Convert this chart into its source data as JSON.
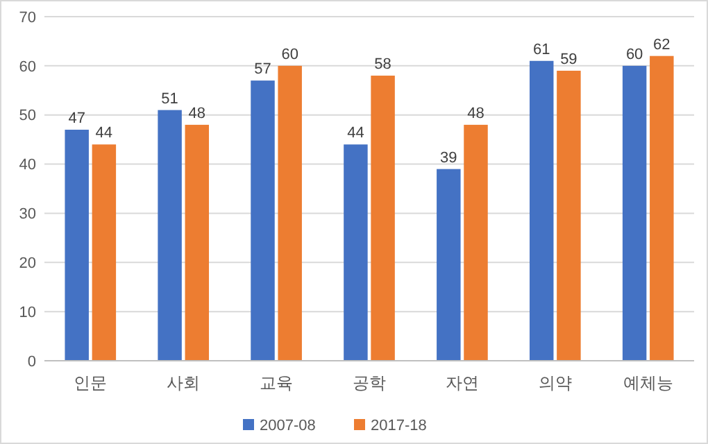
{
  "chart_data": {
    "type": "bar",
    "categories": [
      "인문",
      "사회",
      "교육",
      "공학",
      "자연",
      "의약",
      "예체능"
    ],
    "series": [
      {
        "name": "2007-08",
        "color": "#4472c4",
        "values": [
          47,
          51,
          57,
          44,
          39,
          61,
          60
        ]
      },
      {
        "name": "2017-18",
        "color": "#ed7d31",
        "values": [
          44,
          48,
          60,
          58,
          48,
          59,
          62
        ]
      }
    ],
    "ylim": [
      0,
      70
    ],
    "yticks": [
      0,
      10,
      20,
      30,
      40,
      50,
      60,
      70
    ],
    "grid": "y",
    "data_labels": true,
    "legend": "bottom"
  }
}
